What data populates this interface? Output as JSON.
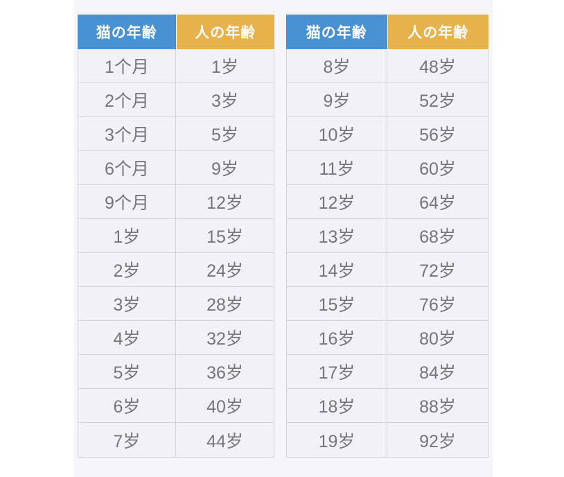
{
  "colors": {
    "cat_header_bg": "#4891d2",
    "human_header_bg": "#e6b24b",
    "header_text": "#ffffff",
    "cell_bg": "#f2f2f4",
    "cell_text": "#76767a",
    "border": "#d3d3d6",
    "panel_bg": "#f6f6f8",
    "page_bg": "#ffffff"
  },
  "tables": [
    {
      "headers": [
        "猫の年齢",
        "人の年齢"
      ],
      "rows": [
        [
          "1个月",
          "1岁"
        ],
        [
          "2个月",
          "3岁"
        ],
        [
          "3个月",
          "5岁"
        ],
        [
          "6个月",
          "9岁"
        ],
        [
          "9个月",
          "12岁"
        ],
        [
          "1岁",
          "15岁"
        ],
        [
          "2岁",
          "24岁"
        ],
        [
          "3岁",
          "28岁"
        ],
        [
          "4岁",
          "32岁"
        ],
        [
          "5岁",
          "36岁"
        ],
        [
          "6岁",
          "40岁"
        ],
        [
          "7岁",
          "44岁"
        ]
      ]
    },
    {
      "headers": [
        "猫の年齢",
        "人の年齢"
      ],
      "rows": [
        [
          "8岁",
          "48岁"
        ],
        [
          "9岁",
          "52岁"
        ],
        [
          "10岁",
          "56岁"
        ],
        [
          "11岁",
          "60岁"
        ],
        [
          "12岁",
          "64岁"
        ],
        [
          "13岁",
          "68岁"
        ],
        [
          "14岁",
          "72岁"
        ],
        [
          "15岁",
          "76岁"
        ],
        [
          "16岁",
          "80岁"
        ],
        [
          "17岁",
          "84岁"
        ],
        [
          "18岁",
          "88岁"
        ],
        [
          "19岁",
          "92岁"
        ]
      ]
    }
  ],
  "chart_data": {
    "type": "table",
    "columns": [
      "猫の年齢",
      "人の年齢"
    ],
    "rows": [
      [
        "1个月",
        "1岁"
      ],
      [
        "2个月",
        "3岁"
      ],
      [
        "3个月",
        "5岁"
      ],
      [
        "6个月",
        "9岁"
      ],
      [
        "9个月",
        "12岁"
      ],
      [
        "1岁",
        "15岁"
      ],
      [
        "2岁",
        "24岁"
      ],
      [
        "3岁",
        "28岁"
      ],
      [
        "4岁",
        "32岁"
      ],
      [
        "5岁",
        "36岁"
      ],
      [
        "6岁",
        "40岁"
      ],
      [
        "7岁",
        "44岁"
      ],
      [
        "8岁",
        "48岁"
      ],
      [
        "9岁",
        "52岁"
      ],
      [
        "10岁",
        "56岁"
      ],
      [
        "11岁",
        "60岁"
      ],
      [
        "12岁",
        "64岁"
      ],
      [
        "13岁",
        "68岁"
      ],
      [
        "14岁",
        "72岁"
      ],
      [
        "15岁",
        "76岁"
      ],
      [
        "16岁",
        "80岁"
      ],
      [
        "17岁",
        "84岁"
      ],
      [
        "18岁",
        "88岁"
      ],
      [
        "19岁",
        "92岁"
      ]
    ]
  }
}
